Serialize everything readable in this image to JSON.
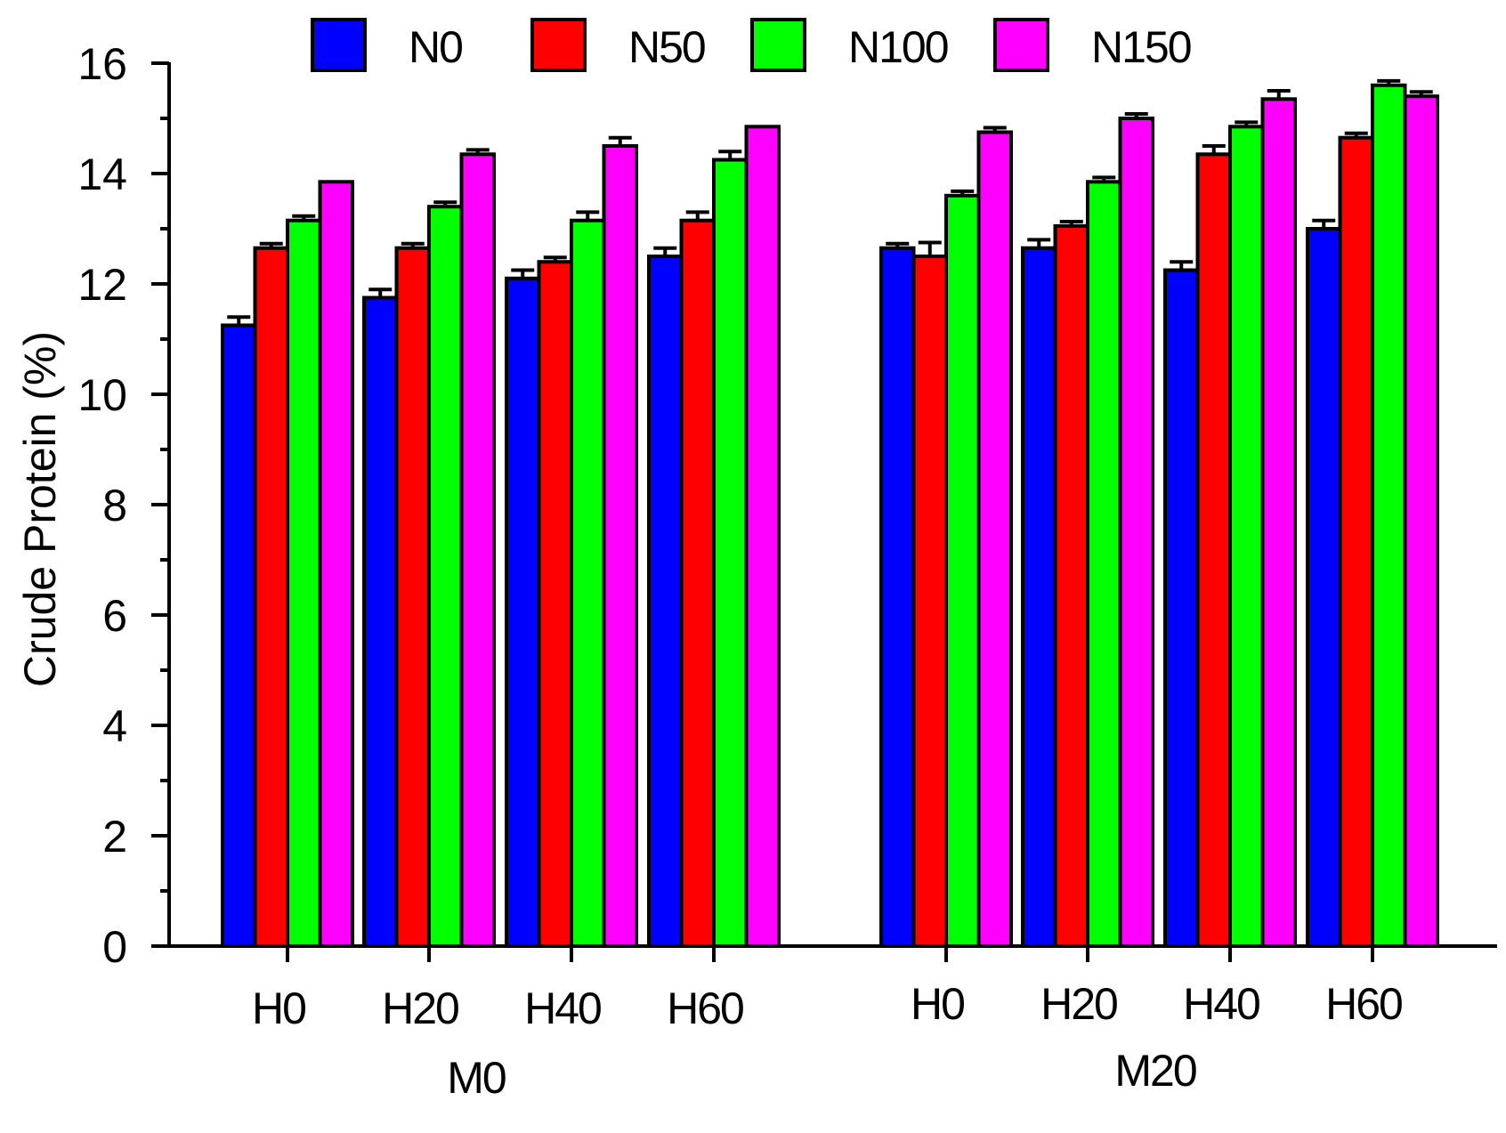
{
  "chart_data": {
    "type": "bar",
    "ylabel": "Crude Protein (%)",
    "ylim": [
      0,
      16
    ],
    "yticks": [
      0,
      2,
      4,
      6,
      8,
      10,
      12,
      14,
      16
    ],
    "grid": false,
    "legend_position": "top",
    "groups": [
      {
        "name": "M0",
        "categories": [
          "H0",
          "H20",
          "H40",
          "H60"
        ]
      },
      {
        "name": "M20",
        "categories": [
          "H0",
          "H20",
          "H40",
          "H60"
        ]
      }
    ],
    "series": [
      {
        "name": "N0",
        "color": "#0000ff",
        "values": [
          11.25,
          11.75,
          12.1,
          12.5,
          12.65,
          12.65,
          12.25,
          13.0
        ],
        "errors": [
          0.15,
          0.15,
          0.15,
          0.15,
          0.08,
          0.15,
          0.15,
          0.15
        ]
      },
      {
        "name": "N50",
        "color": "#ff0000",
        "values": [
          12.65,
          12.65,
          12.4,
          13.15,
          12.5,
          13.05,
          14.35,
          14.65
        ],
        "errors": [
          0.08,
          0.08,
          0.08,
          0.15,
          0.25,
          0.08,
          0.15,
          0.08
        ]
      },
      {
        "name": "N100",
        "color": "#00ff00",
        "values": [
          13.15,
          13.4,
          13.15,
          14.25,
          13.6,
          13.85,
          14.85,
          15.6
        ],
        "errors": [
          0.08,
          0.08,
          0.15,
          0.15,
          0.08,
          0.08,
          0.08,
          0.08
        ]
      },
      {
        "name": "N150",
        "color": "#ff00ff",
        "values": [
          13.85,
          14.35,
          14.5,
          14.85,
          14.75,
          15.0,
          15.35,
          15.4
        ],
        "errors": [
          0.0,
          0.08,
          0.15,
          0.0,
          0.08,
          0.08,
          0.15,
          0.08
        ]
      }
    ]
  }
}
